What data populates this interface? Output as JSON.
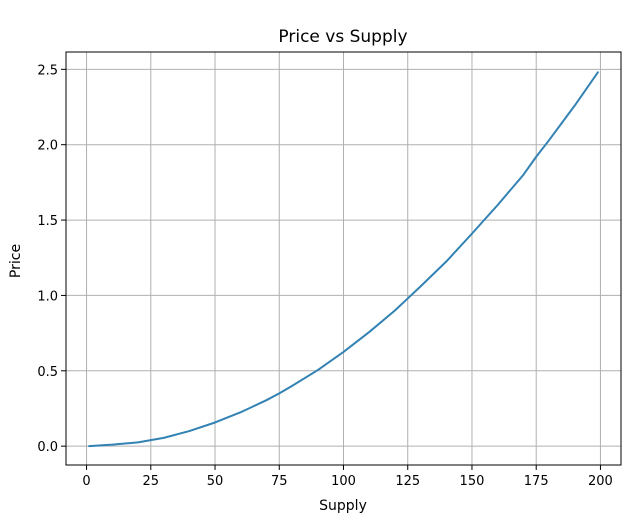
{
  "chart_data": {
    "type": "line",
    "title": "Price vs Supply",
    "xlabel": "Supply",
    "ylabel": "Price",
    "xlim": [
      -8,
      208
    ],
    "ylim": [
      -0.125,
      2.615
    ],
    "xticks": [
      0,
      25,
      50,
      75,
      100,
      125,
      150,
      175,
      200
    ],
    "xtick_labels": [
      "0",
      "25",
      "50",
      "75",
      "100",
      "125",
      "150",
      "175",
      "200"
    ],
    "yticks": [
      0.0,
      0.5,
      1.0,
      1.5,
      2.0,
      2.5
    ],
    "ytick_labels": [
      "0.0",
      "0.5",
      "1.0",
      "1.5",
      "2.0",
      "2.5"
    ],
    "grid": true,
    "line_color": "#3282b4",
    "grid_color": "#b0b0b0",
    "series": [
      {
        "x": [
          1,
          10,
          20,
          25,
          30,
          40,
          50,
          60,
          70,
          75,
          80,
          90,
          100,
          110,
          120,
          125,
          130,
          140,
          150,
          160,
          170,
          175,
          180,
          190,
          199
        ],
        "y": [
          0.0,
          0.01,
          0.025,
          0.04,
          0.055,
          0.1,
          0.157,
          0.225,
          0.305,
          0.35,
          0.4,
          0.505,
          0.625,
          0.757,
          0.9,
          0.98,
          1.06,
          1.225,
          1.41,
          1.6,
          1.8,
          1.92,
          2.03,
          2.26,
          2.48
        ]
      }
    ]
  }
}
